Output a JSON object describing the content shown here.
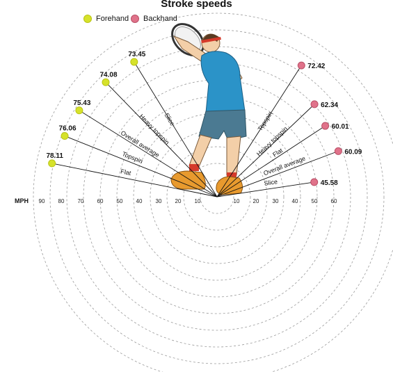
{
  "chart_data": {
    "type": "radial",
    "title": "Stroke speeds",
    "unit_label": "MPH",
    "legend": [
      {
        "name": "Forehand",
        "color": "#d6e22b"
      },
      {
        "name": "Backhand",
        "color": "#e0728a"
      }
    ],
    "axis_ticks": [
      10,
      20,
      30,
      40,
      50,
      60,
      70,
      80,
      90
    ],
    "series": [
      {
        "name": "Forehand",
        "side": "left",
        "color": "#d6e22b",
        "categories": [
          "Flat",
          "Topspin",
          "Overall average",
          "Heavy topspin",
          "Slice"
        ],
        "values": [
          78.11,
          76.06,
          75.43,
          74.08,
          73.45
        ],
        "labels": [
          "78.11",
          "76.06",
          "75.43",
          "74.08",
          "73.45"
        ]
      },
      {
        "name": "Backhand",
        "side": "right",
        "color": "#e0728a",
        "categories": [
          "Topspin",
          "Heavy topspin",
          "Flat",
          "Overall average",
          "Slice"
        ],
        "values": [
          72.42,
          62.34,
          60.01,
          60.09,
          45.58
        ],
        "labels": [
          "72.42",
          "62.34",
          "60.01",
          "60.09",
          "45.58"
        ]
      }
    ]
  }
}
